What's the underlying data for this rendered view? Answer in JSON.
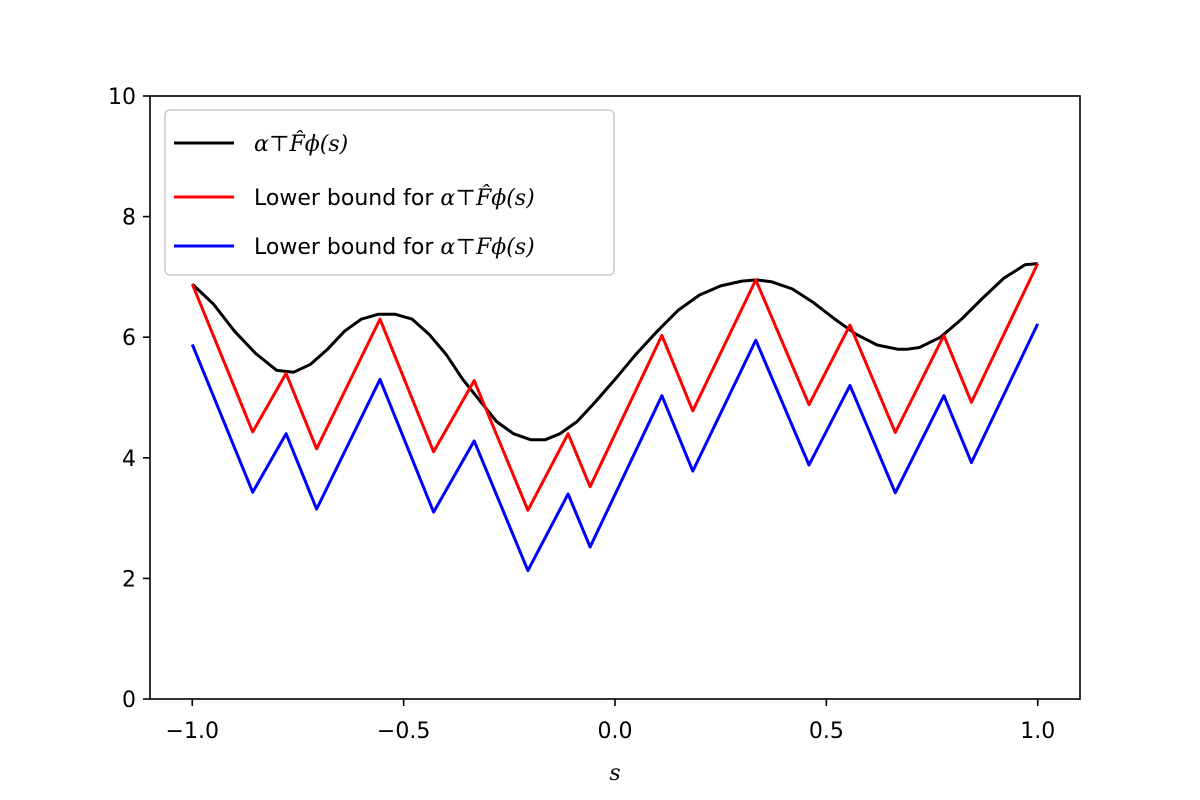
{
  "chart_data": {
    "type": "line",
    "title": "",
    "xlabel": "s",
    "ylabel": "",
    "xlim": [
      -1.1,
      1.1
    ],
    "ylim": [
      0,
      10
    ],
    "xticks": [
      -1.0,
      -0.5,
      0.0,
      0.5,
      1.0
    ],
    "xtick_labels": [
      "−1.0",
      "−0.5",
      "0.0",
      "0.5",
      "1.0"
    ],
    "yticks": [
      0,
      2,
      4,
      6,
      8,
      10
    ],
    "ytick_labels": [
      "0",
      "2",
      "4",
      "6",
      "8",
      "10"
    ],
    "grid": false,
    "legend_position": "upper-left",
    "series": [
      {
        "name": "α⊤F̂ϕ(s)",
        "legend_label": "α⊤𝓕̂ϕ(s)",
        "color": "#000000",
        "x": [
          -1.0,
          -0.95,
          -0.9,
          -0.85,
          -0.8,
          -0.76,
          -0.72,
          -0.68,
          -0.64,
          -0.6,
          -0.56,
          -0.52,
          -0.48,
          -0.44,
          -0.4,
          -0.36,
          -0.32,
          -0.28,
          -0.24,
          -0.2,
          -0.165,
          -0.13,
          -0.09,
          -0.05,
          0.0,
          0.05,
          0.1,
          0.15,
          0.2,
          0.25,
          0.3,
          0.335,
          0.37,
          0.42,
          0.47,
          0.52,
          0.57,
          0.62,
          0.67,
          0.69,
          0.72,
          0.77,
          0.82,
          0.87,
          0.92,
          0.97,
          1.0
        ],
        "y": [
          6.88,
          6.55,
          6.1,
          5.73,
          5.45,
          5.42,
          5.55,
          5.8,
          6.1,
          6.3,
          6.38,
          6.38,
          6.3,
          6.05,
          5.72,
          5.3,
          4.95,
          4.6,
          4.4,
          4.3,
          4.3,
          4.4,
          4.6,
          4.9,
          5.3,
          5.72,
          6.1,
          6.45,
          6.7,
          6.85,
          6.93,
          6.95,
          6.92,
          6.8,
          6.57,
          6.3,
          6.05,
          5.87,
          5.8,
          5.8,
          5.83,
          6.0,
          6.3,
          6.65,
          6.98,
          7.2,
          7.22
        ]
      },
      {
        "name": "Lower bound for α⊤F̂ϕ(s)",
        "color": "#ff0000",
        "x": [
          -1.0,
          -0.857,
          -0.778,
          -0.706,
          -0.556,
          -0.429,
          -0.333,
          -0.206,
          -0.111,
          -0.059,
          0.111,
          0.184,
          0.333,
          0.459,
          0.556,
          0.663,
          0.778,
          0.843,
          1.0
        ],
        "y": [
          6.88,
          4.43,
          5.4,
          4.15,
          6.3,
          4.1,
          5.28,
          3.13,
          4.4,
          3.52,
          6.03,
          4.78,
          6.95,
          4.88,
          6.2,
          4.42,
          6.03,
          4.92,
          7.22
        ]
      },
      {
        "name": "Lower bound for α⊤Fϕ(s)",
        "color": "#0000ff",
        "x": [
          -1.0,
          -0.857,
          -0.778,
          -0.706,
          -0.556,
          -0.429,
          -0.333,
          -0.206,
          -0.111,
          -0.059,
          0.111,
          0.184,
          0.333,
          0.459,
          0.556,
          0.663,
          0.778,
          0.843,
          1.0
        ],
        "y": [
          5.88,
          3.43,
          4.4,
          3.15,
          5.3,
          3.1,
          4.28,
          2.13,
          3.4,
          2.52,
          5.03,
          3.78,
          5.95,
          3.88,
          5.2,
          3.42,
          5.03,
          3.92,
          6.22
        ]
      }
    ]
  },
  "legend": {
    "items": [
      {
        "prefix": "",
        "math": "α⊤F̂ϕ(s)",
        "color": "#000000"
      },
      {
        "prefix": "Lower bound for ",
        "math": "α⊤F̂ϕ(s)",
        "color": "#ff0000"
      },
      {
        "prefix": "Lower bound for ",
        "math": "α⊤Fϕ(s)",
        "color": "#0000ff"
      }
    ]
  }
}
